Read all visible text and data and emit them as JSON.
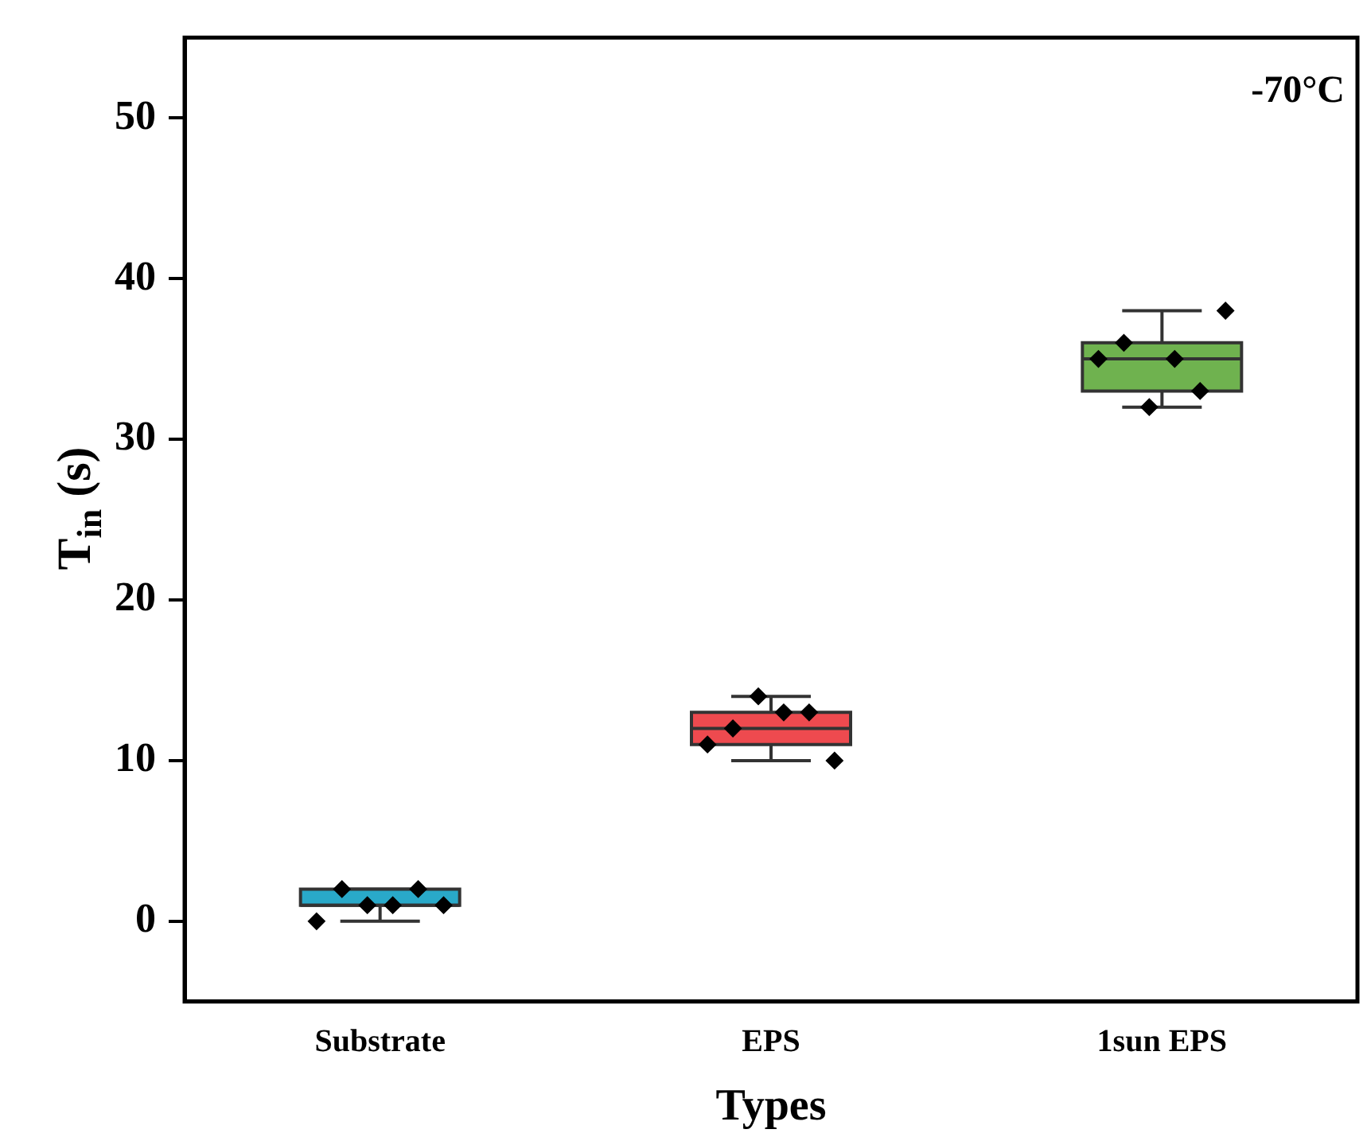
{
  "chart_data": {
    "type": "box",
    "xlabel": "Types",
    "ylabel": "T$_{in}$ (s)",
    "categories": [
      "Substrate",
      "EPS",
      "1sun EPS"
    ],
    "ylim": [
      -5,
      55
    ],
    "yticks": [
      0,
      10,
      20,
      30,
      40,
      50
    ],
    "grid": false,
    "legend": false,
    "marker": "diamond",
    "annotations": [
      "-70°C"
    ],
    "series": [
      {
        "colors": [
          "#29a9c9",
          "#ee4a4f",
          "#6fb24f"
        ],
        "boxes": [
          {
            "low": 0,
            "q1": 1,
            "median": 1,
            "q3": 2,
            "high": 2
          },
          {
            "low": 10,
            "q1": 11,
            "median": 12,
            "q3": 13,
            "high": 14
          },
          {
            "low": 32,
            "q1": 33,
            "median": 35,
            "q3": 36,
            "high": 38
          }
        ]
      },
      {
        "type": "scatter",
        "color": "#000000",
        "x": [
          "Substrate",
          "Substrate",
          "Substrate",
          "Substrate",
          "Substrate",
          "Substrate",
          "EPS",
          "EPS",
          "EPS",
          "EPS",
          "EPS",
          "EPS",
          "1sun EPS",
          "1sun EPS",
          "1sun EPS",
          "1sun EPS",
          "1sun EPS",
          "1sun EPS"
        ],
        "values": [
          0,
          2,
          1,
          1,
          2,
          1,
          11,
          12,
          14,
          13,
          13,
          10,
          35,
          36,
          32,
          35,
          33,
          38
        ]
      }
    ]
  }
}
